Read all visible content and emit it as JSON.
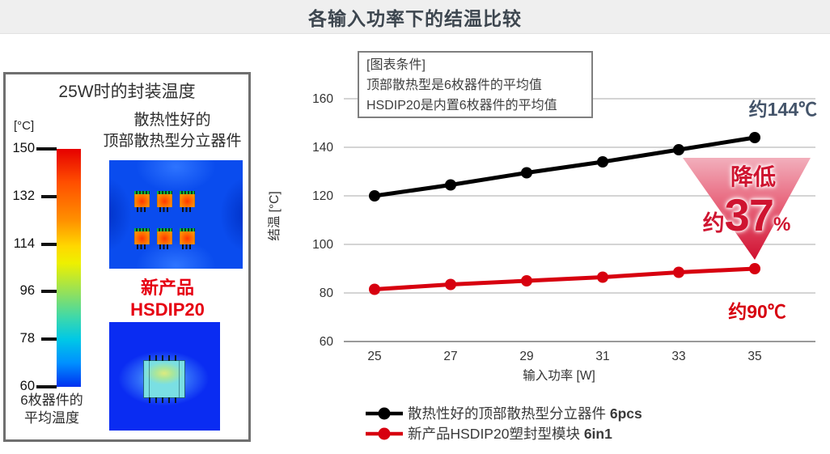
{
  "title": "各输入功率下的结温比较",
  "left_panel": {
    "title": "25W时的封装温度",
    "scale": {
      "unit": "[°C]",
      "ticks": [
        "150",
        "132",
        "114",
        "96",
        "78",
        "60"
      ],
      "caption_line1": "6枚器件的",
      "caption_line2": "平均温度"
    },
    "discrete_line1": "散热性好的",
    "discrete_line2": "顶部散热型分立器件",
    "new_product_line1": "新产品",
    "new_product_line2": "HSDIP20"
  },
  "chart": {
    "condition_lines": {
      "0": "[图表条件]",
      "1": "顶部散热型是6枚器件的平均值",
      "2": "HSDIP20是内置6枚器件的平均值"
    },
    "black_label": "约144℃",
    "red_label": "约90℃",
    "triangle": {
      "line1": "降低",
      "prefix": "约",
      "big": "37",
      "pct": "%"
    }
  },
  "chart_data": {
    "type": "line",
    "x": [
      25,
      27,
      29,
      31,
      33,
      35
    ],
    "xticklabels": [
      "25",
      "27",
      "29",
      "31",
      "33",
      "35"
    ],
    "series": [
      {
        "name": "散热性好的顶部散热型分立器件 6pcs",
        "color": "#000000",
        "values": [
          120,
          124.5,
          129.5,
          134,
          139,
          144
        ]
      },
      {
        "name": "新产品HSDIP20塑封型模块 6in1",
        "color": "#d7000f",
        "values": [
          81.5,
          83.5,
          85,
          86.5,
          88.5,
          90
        ]
      }
    ],
    "xlabel": "输入功率 [W]",
    "ylabel": "结温 [°C]",
    "ylim": [
      60,
      160
    ],
    "yticks": [
      160,
      140,
      120,
      100,
      80,
      60
    ],
    "grid": "horizontal",
    "legend_position": "bottom",
    "annotations": [
      "约144℃",
      "约90℃",
      "降低 约37%"
    ]
  },
  "legend": [
    {
      "label": "散热性好的顶部散热型分立器件 ",
      "suffix": "6pcs",
      "color": "#000000"
    },
    {
      "label": "新产品HSDIP20塑封型模块 ",
      "suffix": "6in1",
      "color": "#d7000f"
    }
  ],
  "colors": {
    "accent_red": "#d7000f",
    "label_blue_gray": "#44546a",
    "title_text": "#3d464f"
  }
}
